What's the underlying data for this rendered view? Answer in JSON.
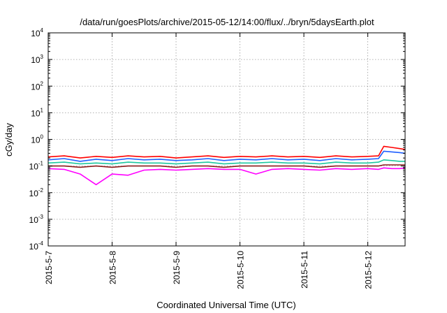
{
  "chart_data": {
    "type": "line",
    "title": "/data/run/goesPlots/archive/2015-05-12/14:00/flux/../bryn/5daysEarth.plot",
    "xlabel": "Coordinated Universal Time (UTC)",
    "ylabel": "cGy/day",
    "y_scale": "log",
    "ylim": [
      0.0001,
      10000
    ],
    "y_ticks": [
      {
        "base": "10",
        "exp": "-4",
        "value": 0.0001
      },
      {
        "base": "10",
        "exp": "-3",
        "value": 0.001
      },
      {
        "base": "10",
        "exp": "-2",
        "value": 0.01
      },
      {
        "base": "10",
        "exp": "-1",
        "value": 0.1
      },
      {
        "base": "10",
        "exp": "0",
        "value": 1
      },
      {
        "base": "10",
        "exp": "1",
        "value": 10
      },
      {
        "base": "10",
        "exp": "2",
        "value": 100
      },
      {
        "base": "10",
        "exp": "3",
        "value": 1000
      },
      {
        "base": "10",
        "exp": "4",
        "value": 10000
      }
    ],
    "xlim": [
      "2015-05-07T00:00",
      "2015-05-12T14:00"
    ],
    "x_ticks": [
      "2015-5-7",
      "2015-5-8",
      "2015-5-9",
      "2015-5-10",
      "2015-5-11",
      "2015-5-12"
    ],
    "grid": true,
    "x": [
      "2015-05-07T00:00",
      "2015-05-07T06:00",
      "2015-05-07T12:00",
      "2015-05-07T18:00",
      "2015-05-08T00:00",
      "2015-05-08T06:00",
      "2015-05-08T12:00",
      "2015-05-08T18:00",
      "2015-05-09T00:00",
      "2015-05-09T06:00",
      "2015-05-09T12:00",
      "2015-05-09T18:00",
      "2015-05-10T00:00",
      "2015-05-10T06:00",
      "2015-05-10T12:00",
      "2015-05-10T18:00",
      "2015-05-11T00:00",
      "2015-05-11T06:00",
      "2015-05-11T12:00",
      "2015-05-11T18:00",
      "2015-05-12T00:00",
      "2015-05-12T04:00",
      "2015-05-12T06:00",
      "2015-05-12T09:00",
      "2015-05-12T12:00",
      "2015-05-12T14:00"
    ],
    "series": [
      {
        "color": "#ff0000",
        "values": [
          0.22,
          0.24,
          0.2,
          0.23,
          0.21,
          0.24,
          0.22,
          0.23,
          0.2,
          0.22,
          0.24,
          0.21,
          0.23,
          0.22,
          0.24,
          0.22,
          0.23,
          0.21,
          0.24,
          0.22,
          0.23,
          0.24,
          0.55,
          0.5,
          0.45,
          0.42
        ]
      },
      {
        "color": "#1f5fff",
        "values": [
          0.17,
          0.19,
          0.15,
          0.18,
          0.16,
          0.19,
          0.17,
          0.18,
          0.16,
          0.17,
          0.19,
          0.16,
          0.18,
          0.17,
          0.19,
          0.17,
          0.18,
          0.16,
          0.19,
          0.17,
          0.18,
          0.19,
          0.36,
          0.34,
          0.32,
          0.3
        ]
      },
      {
        "color": "#1fc8a0",
        "values": [
          0.13,
          0.14,
          0.12,
          0.13,
          0.12,
          0.14,
          0.13,
          0.13,
          0.12,
          0.13,
          0.14,
          0.12,
          0.13,
          0.13,
          0.14,
          0.13,
          0.13,
          0.12,
          0.14,
          0.13,
          0.13,
          0.14,
          0.17,
          0.16,
          0.15,
          0.15
        ]
      },
      {
        "color": "#8b1a1a",
        "values": [
          0.1,
          0.1,
          0.09,
          0.1,
          0.09,
          0.1,
          0.1,
          0.1,
          0.09,
          0.1,
          0.1,
          0.09,
          0.1,
          0.1,
          0.1,
          0.1,
          0.1,
          0.09,
          0.1,
          0.1,
          0.1,
          0.1,
          0.11,
          0.11,
          0.11,
          0.11
        ]
      },
      {
        "color": "#ff00ff",
        "values": [
          0.08,
          0.075,
          0.05,
          0.02,
          0.05,
          0.045,
          0.07,
          0.075,
          0.07,
          0.075,
          0.08,
          0.075,
          0.075,
          0.05,
          0.075,
          0.08,
          0.075,
          0.07,
          0.08,
          0.075,
          0.08,
          0.075,
          0.085,
          0.08,
          0.08,
          0.085
        ]
      }
    ]
  }
}
